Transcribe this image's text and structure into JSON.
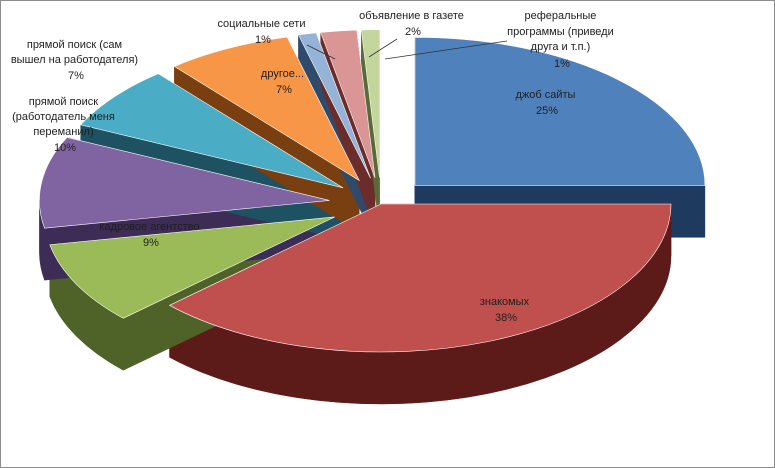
{
  "chart_data": {
    "type": "pie",
    "title": "",
    "slices": [
      {
        "label": "джоб сайты",
        "pct_label": "25%",
        "value": 25,
        "color": "#4f81bd",
        "side": "#1f3a5f"
      },
      {
        "label": "знакомых",
        "pct_label": "38%",
        "value": 38,
        "color": "#c0504d",
        "side": "#5c1a18"
      },
      {
        "label": "кадровое агентство",
        "pct_label": "9%",
        "value": 9,
        "color": "#9bbb59",
        "side": "#4f6328"
      },
      {
        "label": "прямой поиск (работодатель меня переманил)",
        "pct_label": "10%",
        "value": 10,
        "color": "#8064a2",
        "side": "#3d2c55"
      },
      {
        "label": "прямой поиск (сам вышел на работодателя)",
        "pct_label": "7%",
        "value": 7,
        "color": "#4bacc6",
        "side": "#1e5262"
      },
      {
        "label": "другое...",
        "pct_label": "7%",
        "value": 7,
        "color": "#f79646",
        "side": "#7a3f10"
      },
      {
        "label": "социальные сети",
        "pct_label": "1%",
        "value": 1,
        "color": "#95b3d7",
        "side": "#2f4a6b"
      },
      {
        "label": "объявление в газете",
        "pct_label": "2%",
        "value": 2,
        "color": "#d99694",
        "side": "#6b2d2b"
      },
      {
        "label": "реферальные программы (приведи друга и т.п.)",
        "pct_label": "1%",
        "value": 1,
        "color": "#c3d69b",
        "side": "#5b6b37"
      }
    ]
  }
}
